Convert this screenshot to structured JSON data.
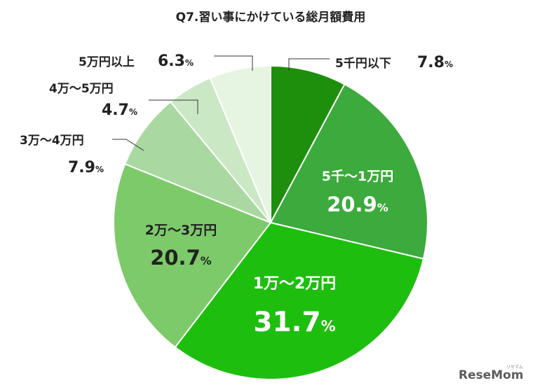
{
  "chart_data": {
    "type": "pie",
    "title": "Q7.習い事にかけている総月額費用",
    "start_angle_deg": 0,
    "direction": "clockwise",
    "slices": [
      {
        "label": "5千円以下",
        "value": 7.8,
        "display": "7.8",
        "color": "#1e8f0c"
      },
      {
        "label": "5千～1万円",
        "value": 20.9,
        "display": "20.9",
        "color": "#3caa3c"
      },
      {
        "label": "1万～2万円",
        "value": 31.7,
        "display": "31.7",
        "color": "#1ebe0f"
      },
      {
        "label": "2万～3万円",
        "value": 20.7,
        "display": "20.7",
        "color": "#7dca6a"
      },
      {
        "label": "3万～4万円",
        "value": 7.9,
        "display": "7.9",
        "color": "#a9d9a0"
      },
      {
        "label": "4万～5万円",
        "value": 4.7,
        "display": "4.7",
        "color": "#cbe8c5"
      },
      {
        "label": "5万円以上",
        "value": 6.3,
        "display": "6.3",
        "color": "#e6f5e1"
      }
    ],
    "percent_sign": "%"
  },
  "logo": {
    "text": "ReseMom",
    "ruby": "リセマム"
  }
}
